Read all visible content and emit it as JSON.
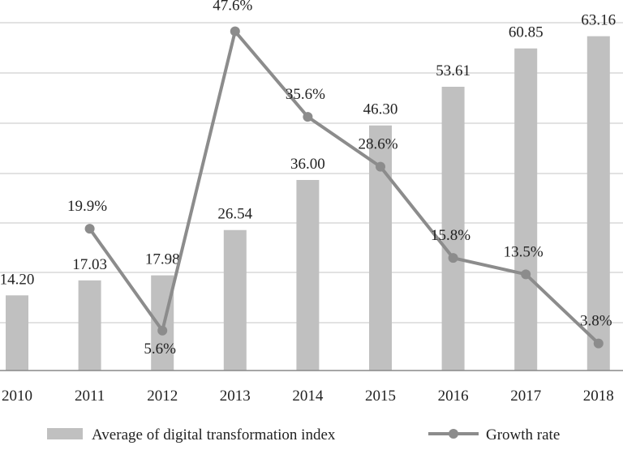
{
  "chart_data": {
    "type": "bar",
    "categories": [
      "2010",
      "2011",
      "2012",
      "2013",
      "2014",
      "2015",
      "2016",
      "2017",
      "2018"
    ],
    "series": [
      {
        "name": "Average of digital transformation index",
        "type": "bar",
        "axis": "left",
        "values": [
          14.2,
          17.03,
          17.98,
          26.54,
          36.0,
          46.3,
          53.61,
          60.85,
          63.16
        ],
        "labels": [
          "14.20",
          "17.03",
          "17.98",
          "26.54",
          "36.00",
          "46.30",
          "53.61",
          "60.85",
          "63.16"
        ],
        "color": "#c0c0c0"
      },
      {
        "name": "Growth rate",
        "type": "line",
        "axis": "right",
        "x": [
          "2011",
          "2012",
          "2013",
          "2014",
          "2015",
          "2016",
          "2017",
          "2018"
        ],
        "values": [
          19.9,
          5.6,
          47.6,
          35.6,
          28.6,
          15.8,
          13.5,
          3.8
        ],
        "labels": [
          "19.9%",
          "5.6%",
          "47.6%",
          "35.6%",
          "28.6%",
          "15.8%",
          "13.5%",
          "3.8%"
        ],
        "color": "#8c8c8c"
      }
    ],
    "ylim": [
      0,
      70
    ],
    "y2lim": [
      0,
      52
    ],
    "grid": true,
    "legend": "bottom",
    "colors": {
      "gridline": "#d0d0d0",
      "axis": "#888888",
      "text": "#222222"
    }
  }
}
